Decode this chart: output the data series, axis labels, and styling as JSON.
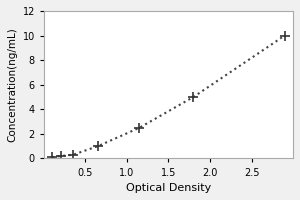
{
  "x": [
    0.1,
    0.2,
    0.35,
    0.65,
    1.15,
    1.8,
    2.9
  ],
  "y": [
    0.1,
    0.2,
    0.3,
    1.0,
    2.5,
    5.0,
    10.0
  ],
  "xlabel": "Optical Density",
  "ylabel": "Concentration(ng/mL)",
  "xlim": [
    0,
    3.0
  ],
  "ylim": [
    0,
    12
  ],
  "xticks": [
    0.5,
    1.0,
    1.5,
    2.0,
    2.5
  ],
  "yticks": [
    0,
    2,
    4,
    6,
    8,
    10,
    12
  ],
  "line_color": "#444444",
  "marker": "+",
  "marker_size": 7,
  "marker_color": "#333333",
  "line_style": "dotted",
  "line_width": 1.5,
  "background_color": "#f0f0f0",
  "plot_bg_color": "#ffffff",
  "xlabel_fontsize": 8,
  "ylabel_fontsize": 7.5,
  "tick_fontsize": 7
}
